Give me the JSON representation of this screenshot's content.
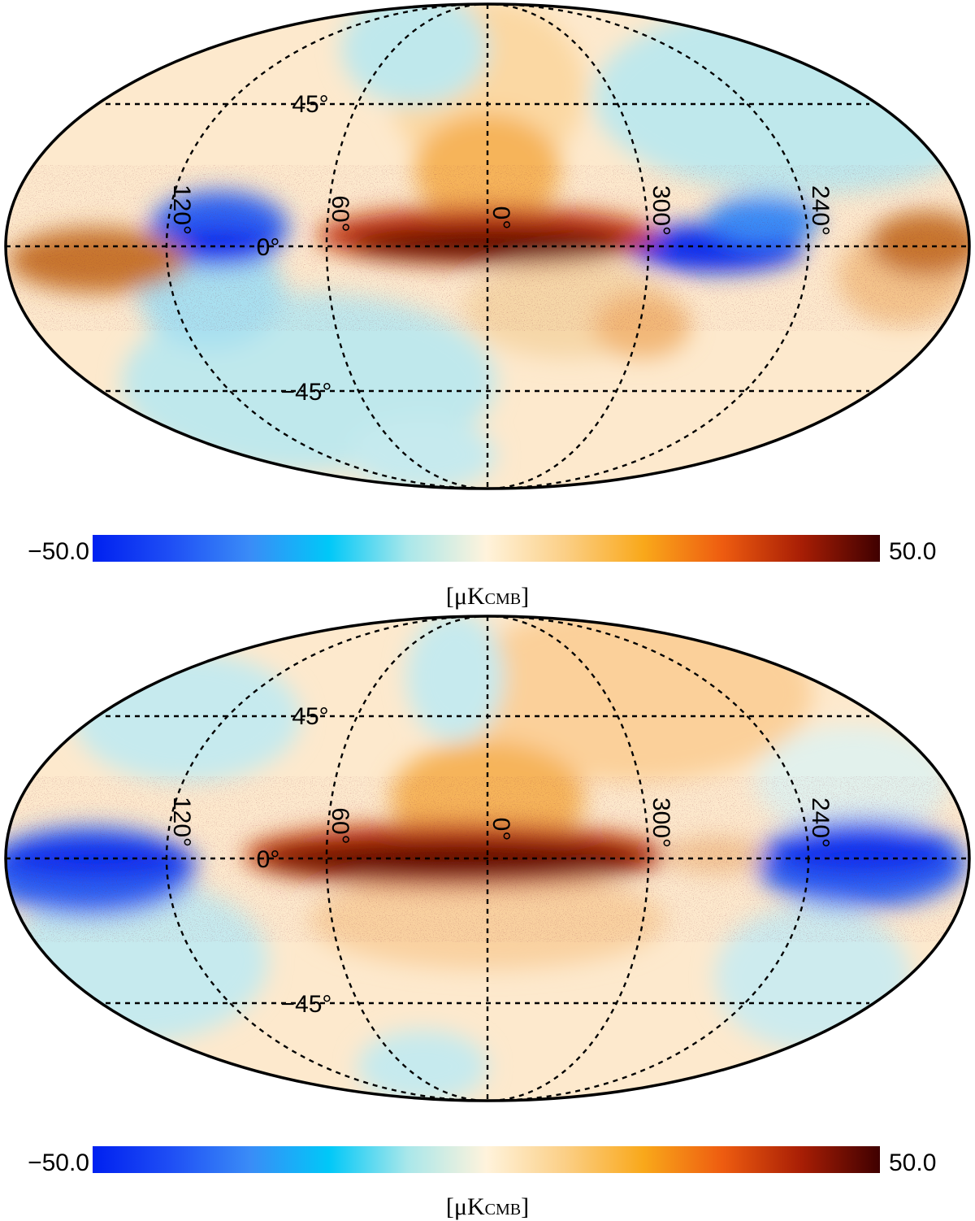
{
  "colormap": {
    "stops": [
      "#0020f0",
      "#1f4ff5",
      "#3a8cf7",
      "#00c8f8",
      "#a9e7ea",
      "#fff3dc",
      "#fbcf86",
      "#f9a81a",
      "#ee5c10",
      "#a81e05",
      "#3f0000"
    ],
    "background": "#ffffff",
    "grid_color": "#000000"
  },
  "maps": [
    {
      "id": "top",
      "graticule_labels": {
        "lat_north": "45°",
        "lat_equator": "0°",
        "lat_south": "−45°",
        "lon_0": "0°",
        "lon_60": "60°",
        "lon_120": "120°",
        "lon_300": "300°",
        "lon_240": "240°"
      },
      "colorbar": {
        "min_label": "−50.0",
        "max_label": "50.0",
        "unit_main": "[μK",
        "unit_sub": "CMB",
        "unit_close": "]",
        "min": -50,
        "max": 50
      }
    },
    {
      "id": "bottom",
      "graticule_labels": {
        "lat_north": "45°",
        "lat_equator": "0°",
        "lat_south": "−45°",
        "lon_0": "0°",
        "lon_60": "60°",
        "lon_120": "120°",
        "lon_300": "300°",
        "lon_240": "240°"
      },
      "colorbar": {
        "min_label": "−50.0",
        "max_label": "50.0",
        "unit_main": "[μK",
        "unit_sub": "CMB",
        "unit_close": "]",
        "min": -50,
        "max": 50
      }
    }
  ]
}
